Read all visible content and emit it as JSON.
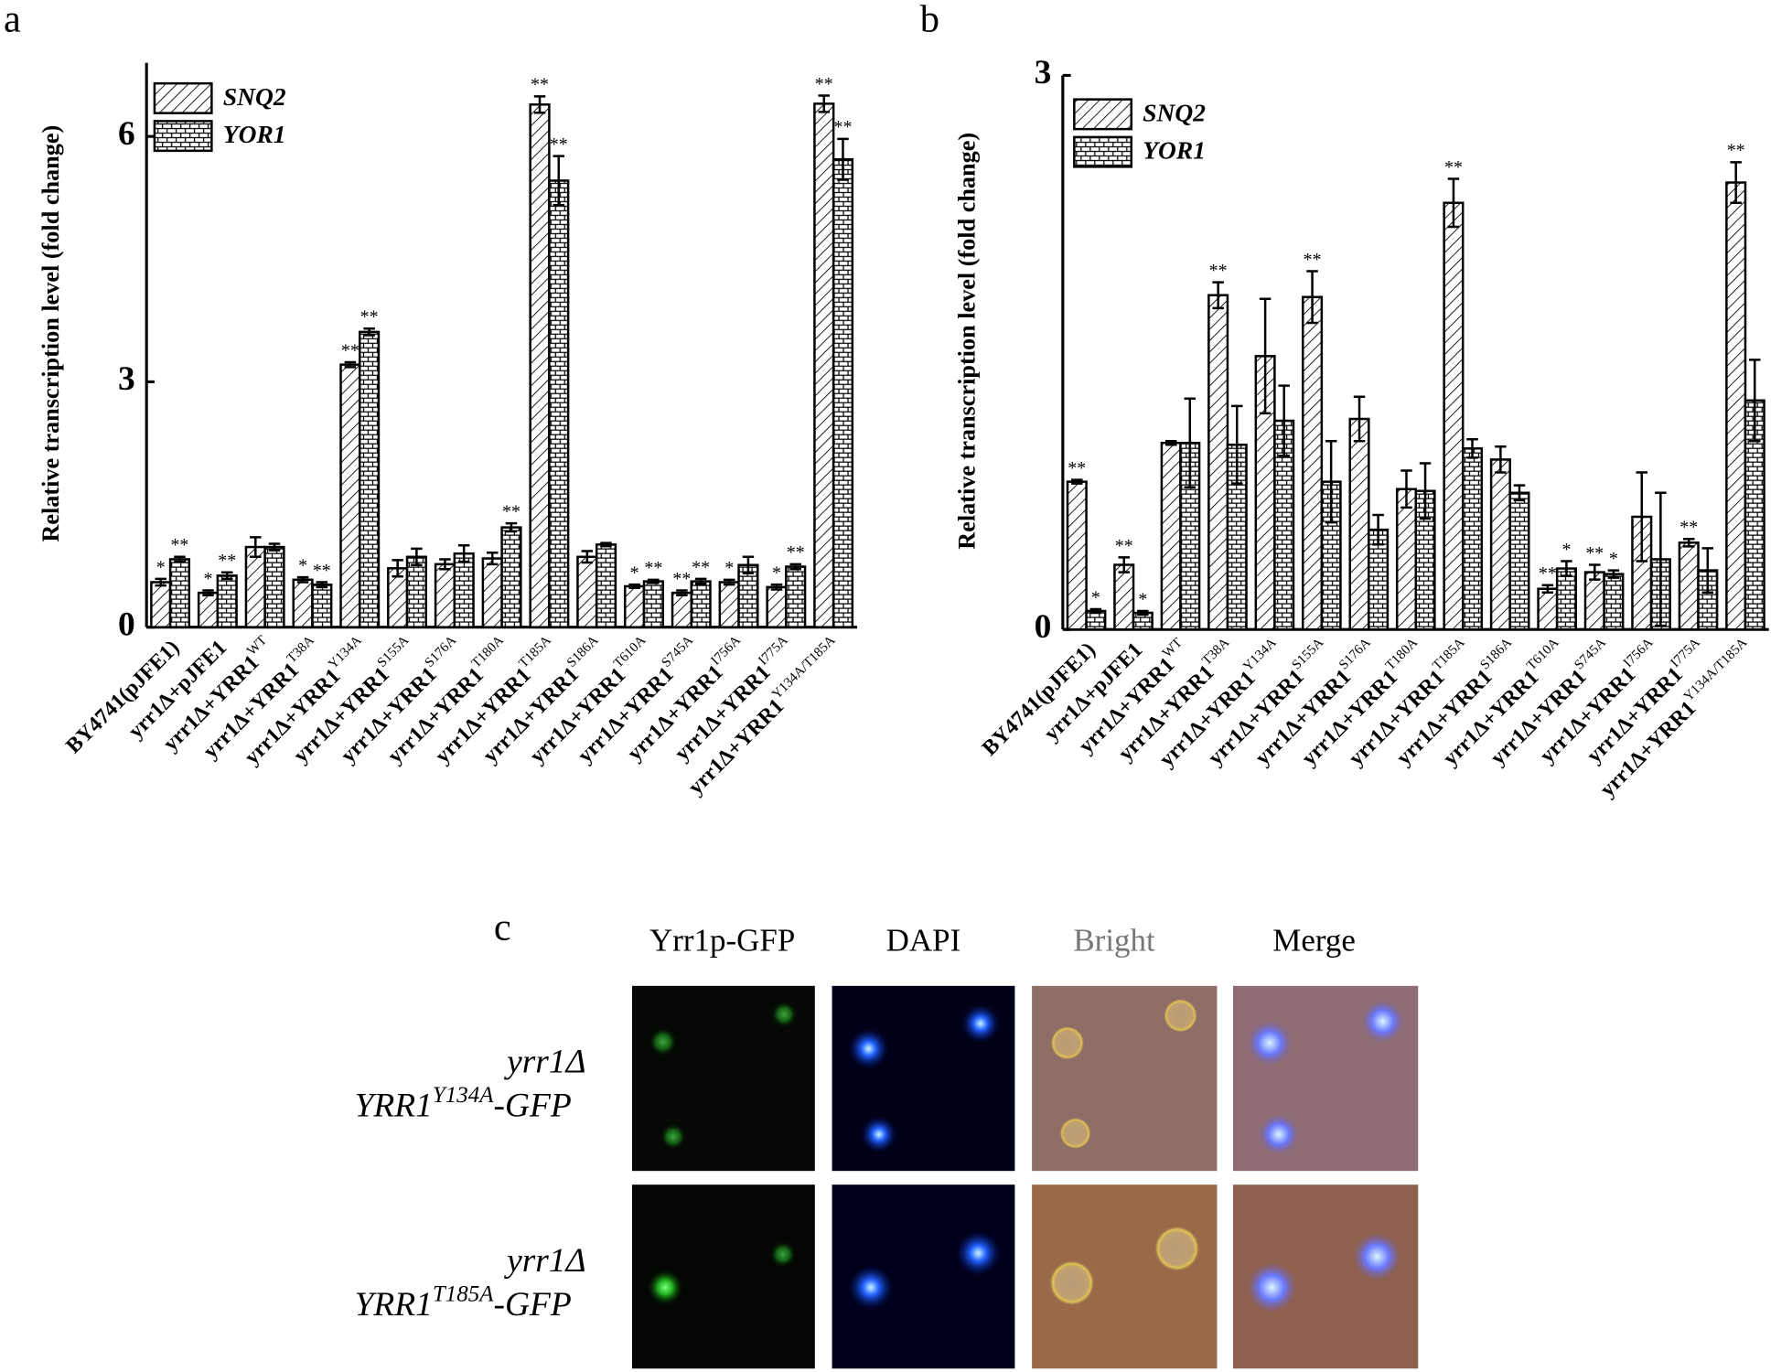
{
  "chart_data": [
    {
      "type": "bar",
      "panel_label": "a",
      "y_label": "Relative transcription level (fold change)",
      "categories": [
        {
          "label": "BY4741(pJFE1)"
        },
        {
          "label": "yrr1Δ+pJFE1"
        },
        {
          "label": "yrr1Δ+YRR1",
          "sup": "WT"
        },
        {
          "label": "yrr1Δ+YRR1",
          "sup": "T38A"
        },
        {
          "label": "yrr1Δ+YRR1",
          "sup": "Y134A"
        },
        {
          "label": "yrr1Δ+YRR1",
          "sup": "S155A"
        },
        {
          "label": "yrr1Δ+YRR1",
          "sup": "S176A"
        },
        {
          "label": "yrr1Δ+YRR1",
          "sup": "T180A"
        },
        {
          "label": "yrr1Δ+YRR1",
          "sup": "T185A"
        },
        {
          "label": "yrr1Δ+YRR1",
          "sup": "S186A"
        },
        {
          "label": "yrr1Δ+YRR1",
          "sup": "T610A"
        },
        {
          "label": "yrr1Δ+YRR1",
          "sup": "S745A"
        },
        {
          "label": "yrr1Δ+YRR1",
          "sup": "I756A"
        },
        {
          "label": "yrr1Δ+YRR1",
          "sup": "I775A"
        },
        {
          "label": "yrr1Δ+YRR1",
          "sup": "Y134A/T185A"
        }
      ],
      "series": [
        {
          "name": "SNQ2",
          "color": "#000000",
          "pattern": "hatch",
          "values": [
            0.55,
            0.42,
            0.98,
            0.58,
            3.21,
            0.72,
            0.77,
            0.84,
            6.39,
            0.86,
            0.5,
            0.42,
            0.55,
            0.49,
            6.4
          ],
          "errors": [
            0.04,
            0.03,
            0.12,
            0.03,
            0.03,
            0.1,
            0.06,
            0.07,
            0.1,
            0.07,
            0.02,
            0.03,
            0.03,
            0.03,
            0.1
          ],
          "significance": [
            "*",
            "*",
            null,
            "*",
            "**",
            null,
            null,
            null,
            "**",
            null,
            "*",
            "**",
            "*",
            "*",
            "**"
          ]
        },
        {
          "name": "YOR1",
          "color": "#000000",
          "pattern": "brick",
          "values": [
            0.83,
            0.63,
            0.98,
            0.52,
            3.61,
            0.86,
            0.9,
            1.22,
            5.46,
            1.01,
            0.56,
            0.56,
            0.76,
            0.74,
            5.72
          ],
          "errors": [
            0.03,
            0.04,
            0.04,
            0.03,
            0.04,
            0.1,
            0.1,
            0.05,
            0.3,
            0.02,
            0.02,
            0.03,
            0.1,
            0.03,
            0.25
          ],
          "significance": [
            "**",
            "**",
            null,
            "**",
            "**",
            null,
            null,
            "**",
            "**",
            null,
            "**",
            "**",
            null,
            "**",
            "**"
          ]
        }
      ],
      "ylim": [
        0,
        6.9
      ],
      "yticks": [
        0,
        3,
        6
      ]
    },
    {
      "type": "bar",
      "panel_label": "b",
      "y_label": "Relative transcription level (fold change)",
      "categories": [
        {
          "label": "BY4741(pJFE1)"
        },
        {
          "label": "yrr1Δ+pJFE1"
        },
        {
          "label": "yrr1Δ+YRR1",
          "sup": "WT"
        },
        {
          "label": "yrr1Δ+YRR1",
          "sup": "T38A"
        },
        {
          "label": "yrr1Δ+YRR1",
          "sup": "Y134A"
        },
        {
          "label": "yrr1Δ+YRR1",
          "sup": "S155A"
        },
        {
          "label": "yrr1Δ+YRR1",
          "sup": "S176A"
        },
        {
          "label": "yrr1Δ+YRR1",
          "sup": "T180A"
        },
        {
          "label": "yrr1Δ+YRR1",
          "sup": "T185A"
        },
        {
          "label": "yrr1Δ+YRR1",
          "sup": "S186A"
        },
        {
          "label": "yrr1Δ+YRR1",
          "sup": "T610A"
        },
        {
          "label": "yrr1Δ+YRR1",
          "sup": "S745A"
        },
        {
          "label": "yrr1Δ+YRR1",
          "sup": "I756A"
        },
        {
          "label": "yrr1Δ+YRR1",
          "sup": "I775A"
        },
        {
          "label": "yrr1Δ+YRR1",
          "sup": "Y134A/T185A"
        }
      ],
      "series": [
        {
          "name": "SNQ2",
          "color": "#000000",
          "pattern": "hatch",
          "values": [
            0.8,
            0.35,
            1.01,
            1.81,
            1.48,
            1.8,
            1.14,
            0.76,
            2.31,
            0.92,
            0.22,
            0.31,
            0.61,
            0.47,
            2.42
          ],
          "errors": [
            0.01,
            0.04,
            0.01,
            0.07,
            0.31,
            0.14,
            0.12,
            0.1,
            0.13,
            0.07,
            0.02,
            0.04,
            0.24,
            0.02,
            0.11
          ],
          "significance": [
            "**",
            "**",
            null,
            "**",
            null,
            "**",
            null,
            null,
            "**",
            null,
            "**",
            "**",
            null,
            "**",
            "**"
          ]
        },
        {
          "name": "YOR1",
          "color": "#000000",
          "pattern": "brick",
          "values": [
            0.1,
            0.09,
            1.01,
            1.0,
            1.13,
            0.8,
            0.54,
            0.75,
            0.98,
            0.74,
            0.33,
            0.3,
            0.38,
            0.32,
            1.24
          ],
          "errors": [
            0.01,
            0.01,
            0.24,
            0.21,
            0.19,
            0.22,
            0.08,
            0.15,
            0.05,
            0.04,
            0.04,
            0.02,
            0.36,
            0.12,
            0.22
          ],
          "significance": [
            "*",
            "*",
            null,
            null,
            null,
            null,
            null,
            null,
            null,
            null,
            "*",
            "*",
            null,
            null,
            null
          ]
        }
      ],
      "ylim": [
        0,
        3
      ],
      "yticks": [
        0,
        3
      ]
    }
  ],
  "panel_c": {
    "panel_label": "c",
    "columns": [
      "Yrr1p-GFP",
      "DAPI",
      "Bright",
      "Merge"
    ],
    "rows": [
      {
        "strain": "yrr1Δ",
        "gene": "YRR1",
        "mutation": "Y134A",
        "tag": "-GFP"
      },
      {
        "strain": "yrr1Δ",
        "gene": "YRR1",
        "mutation": "T185A",
        "tag": "-GFP"
      }
    ]
  }
}
